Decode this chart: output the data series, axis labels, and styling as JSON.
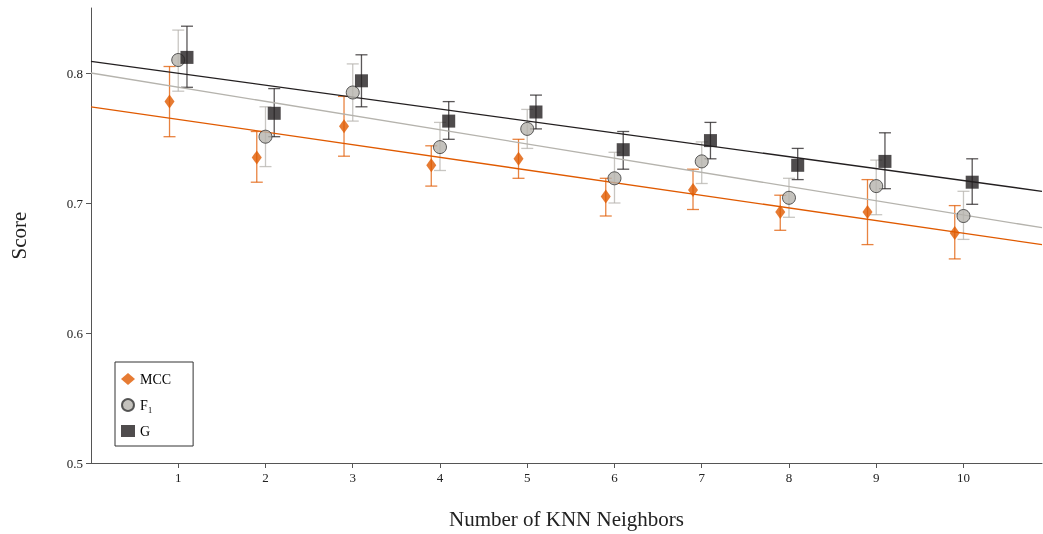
{
  "chart_data": {
    "type": "scatter",
    "xlabel": "Number of KNN Neighbors",
    "ylabel": "Score",
    "xlim": [
      0,
      10.9
    ],
    "xticks": [
      1,
      2,
      3,
      4,
      5,
      6,
      7,
      8,
      9,
      10
    ],
    "ylim": [
      0.5,
      0.85
    ],
    "yticks": [
      0.5,
      0.6,
      0.7,
      0.8
    ],
    "grid": false,
    "legend": "bottom left",
    "series": [
      {
        "name": "MCC",
        "color": "#e05a00",
        "marker": "diamond",
        "x": [
          0.9,
          1.9,
          2.9,
          3.9,
          4.9,
          5.9,
          6.9,
          7.9,
          8.9,
          9.9
        ],
        "values": [
          0.778,
          0.735,
          0.759,
          0.729,
          0.734,
          0.705,
          0.71,
          0.693,
          0.693,
          0.677
        ],
        "errors": [
          [
            0.751,
            0.805
          ],
          [
            0.716,
            0.755
          ],
          [
            0.736,
            0.782
          ],
          [
            0.713,
            0.744
          ],
          [
            0.719,
            0.749
          ],
          [
            0.69,
            0.719
          ],
          [
            0.695,
            0.726
          ],
          [
            0.679,
            0.706
          ],
          [
            0.668,
            0.718
          ],
          [
            0.657,
            0.698
          ]
        ]
      },
      {
        "name": "F₁",
        "color": "#b5b3ad",
        "marker": "circle",
        "x": [
          1,
          2,
          3,
          4,
          5,
          6,
          7,
          8,
          9,
          10
        ],
        "values": [
          0.81,
          0.751,
          0.785,
          0.743,
          0.757,
          0.719,
          0.732,
          0.704,
          0.713,
          0.69
        ],
        "errors": [
          [
            0.786,
            0.833
          ],
          [
            0.728,
            0.774
          ],
          [
            0.763,
            0.807
          ],
          [
            0.725,
            0.762
          ],
          [
            0.742,
            0.772
          ],
          [
            0.7,
            0.739
          ],
          [
            0.715,
            0.747
          ],
          [
            0.689,
            0.719
          ],
          [
            0.691,
            0.733
          ],
          [
            0.672,
            0.709
          ]
        ]
      },
      {
        "name": "G",
        "color": "#231f20",
        "marker": "square",
        "x": [
          1.1,
          2.1,
          3.1,
          4.1,
          5.1,
          6.1,
          7.1,
          8.1,
          9.1,
          10.1
        ],
        "values": [
          0.812,
          0.769,
          0.794,
          0.763,
          0.77,
          0.741,
          0.748,
          0.729,
          0.732,
          0.716
        ],
        "errors": [
          [
            0.789,
            0.836
          ],
          [
            0.751,
            0.788
          ],
          [
            0.774,
            0.814
          ],
          [
            0.749,
            0.778
          ],
          [
            0.757,
            0.783
          ],
          [
            0.726,
            0.755
          ],
          [
            0.734,
            0.762
          ],
          [
            0.718,
            0.742
          ],
          [
            0.711,
            0.754
          ],
          [
            0.699,
            0.734
          ]
        ]
      },
      {
        "type": "line",
        "color": "#e05a00",
        "marker": "none",
        "x": [
          0,
          10.9
        ],
        "values": [
          0.774,
          0.668
        ]
      },
      {
        "type": "line",
        "color": "#b5b3ad",
        "marker": "none",
        "x": [
          0,
          10.9
        ],
        "values": [
          0.8,
          0.681
        ]
      },
      {
        "type": "line",
        "color": "#231f20",
        "marker": "none",
        "x": [
          0,
          10.9
        ],
        "values": [
          0.809,
          0.709
        ]
      }
    ]
  }
}
